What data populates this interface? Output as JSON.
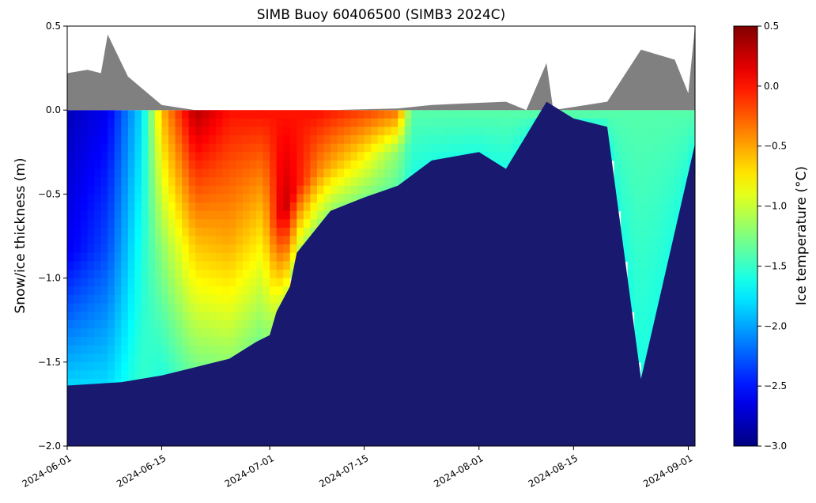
{
  "chart_data": {
    "type": "heatmap",
    "title": "SIMB Buoy 60406500 (SIMB3 2024C)",
    "xlabel": "",
    "ylabel": "Snow/ice thickness (m)",
    "colorbar_label": "Ice temperature (°C)",
    "x_ticks": [
      "2024-06-01",
      "2024-06-15",
      "2024-07-01",
      "2024-07-15",
      "2024-08-01",
      "2024-08-15",
      "2024-09-01"
    ],
    "xlim": [
      "2024-06-01",
      "2024-09-02"
    ],
    "ylim": [
      -2.0,
      0.5
    ],
    "y_ticks": [
      "−2.0",
      "−1.5",
      "−1.0",
      "−0.5",
      "0.0",
      "0.5"
    ],
    "y_tick_values": [
      -2.0,
      -1.5,
      -1.0,
      -0.5,
      0.0,
      0.5
    ],
    "colorbar_ticks": [
      "−3.0",
      "−2.5",
      "−2.0",
      "−1.5",
      "−1.0",
      "−0.5",
      "0.0",
      "0.5"
    ],
    "colorbar_tick_values": [
      -3.0,
      -2.5,
      -2.0,
      -1.5,
      -1.0,
      -0.5,
      0.0,
      0.5
    ],
    "clim": [
      -3.0,
      0.5
    ],
    "colormap": "jet",
    "colors": {
      "snow": "#808080",
      "ocean": "#191970"
    },
    "snow_surface": {
      "dates": [
        "2024-06-01",
        "2024-06-04",
        "2024-06-06",
        "2024-06-07",
        "2024-06-10",
        "2024-06-15",
        "2024-06-20",
        "2024-06-25",
        "2024-07-01",
        "2024-07-10",
        "2024-07-20",
        "2024-07-25",
        "2024-07-30",
        "2024-08-05",
        "2024-08-08",
        "2024-08-11",
        "2024-08-12",
        "2024-08-20",
        "2024-08-25",
        "2024-08-30",
        "2024-09-01",
        "2024-09-02"
      ],
      "values": [
        0.22,
        0.24,
        0.22,
        0.45,
        0.2,
        0.03,
        0.0,
        0.0,
        0.0,
        0.0,
        0.01,
        0.03,
        0.04,
        0.05,
        0.0,
        0.28,
        0.0,
        0.05,
        0.36,
        0.3,
        0.1,
        0.5
      ]
    },
    "ice_bottom": {
      "dates": [
        "2024-06-01",
        "2024-06-09",
        "2024-06-12",
        "2024-06-15",
        "2024-06-20",
        "2024-06-25",
        "2024-06-29",
        "2024-07-01",
        "2024-07-02",
        "2024-07-04",
        "2024-07-05",
        "2024-07-10",
        "2024-07-15",
        "2024-07-20",
        "2024-07-25",
        "2024-08-01",
        "2024-08-05",
        "2024-08-08",
        "2024-08-11",
        "2024-08-15",
        "2024-08-20",
        "2024-08-25",
        "2024-09-02"
      ],
      "values": [
        -1.64,
        -1.62,
        -1.6,
        -1.58,
        -1.53,
        -1.48,
        -1.38,
        -1.34,
        -1.2,
        -1.05,
        -0.85,
        -0.6,
        -0.52,
        -0.45,
        -0.3,
        -0.25,
        -0.35,
        -0.15,
        0.05,
        -0.05,
        -0.1,
        -1.6,
        -0.2
      ]
    },
    "temperature_profiles": [
      {
        "date": "2024-06-01",
        "top": -2.8,
        "middle": -2.6,
        "bottom": -1.8
      },
      {
        "date": "2024-06-07",
        "top": -2.6,
        "middle": -2.3,
        "bottom": -1.8
      },
      {
        "date": "2024-06-12",
        "top": -1.8,
        "middle": -1.6,
        "bottom": -1.5
      },
      {
        "date": "2024-06-15",
        "top": -0.6,
        "middle": -1.2,
        "bottom": -1.6
      },
      {
        "date": "2024-06-20",
        "top": 0.3,
        "middle": -0.6,
        "bottom": -1.3
      },
      {
        "date": "2024-06-25",
        "top": 0.0,
        "middle": -0.5,
        "bottom": -1.2
      },
      {
        "date": "2024-06-30",
        "top": 0.0,
        "middle": -0.7,
        "bottom": -1.3
      },
      {
        "date": "2024-07-03",
        "top": 0.0,
        "middle": 0.3,
        "bottom": -1.0
      },
      {
        "date": "2024-07-08",
        "top": 0.0,
        "middle": -0.4,
        "bottom": -1.2
      },
      {
        "date": "2024-07-15",
        "top": -0.2,
        "middle": -0.8,
        "bottom": -1.3
      },
      {
        "date": "2024-07-20",
        "top": -0.4,
        "middle": -1.2,
        "bottom": -1.4
      },
      {
        "date": "2024-07-22",
        "top": -1.4,
        "middle": -1.5,
        "bottom": -1.6
      },
      {
        "date": "2024-09-02",
        "top": -1.4,
        "middle": -1.5,
        "bottom": -1.6
      }
    ]
  }
}
